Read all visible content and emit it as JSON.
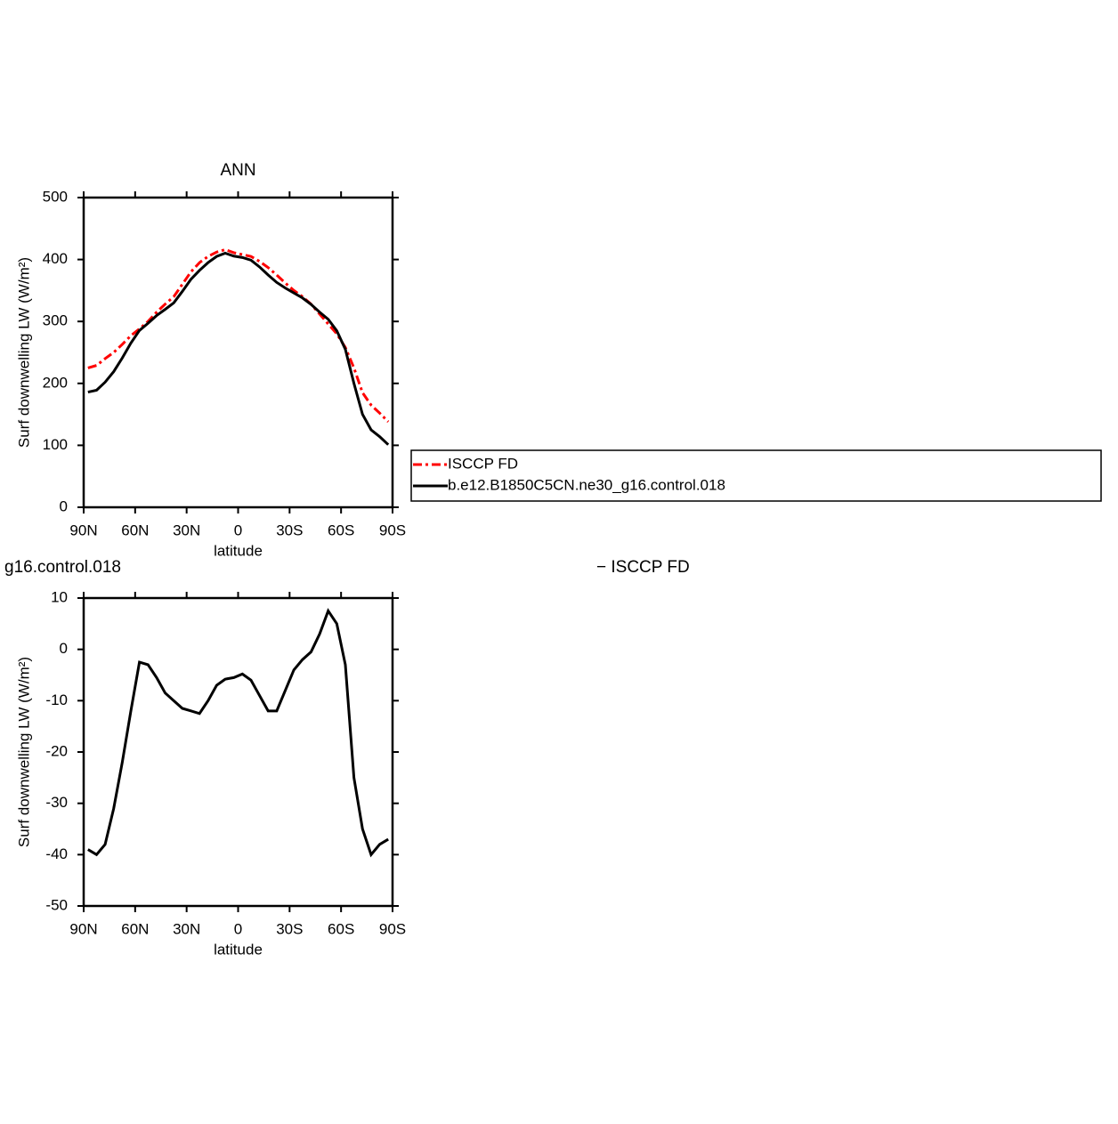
{
  "chart_data": [
    {
      "type": "line",
      "title": "ANN",
      "x_label": "latitude",
      "y_label": "Surf downwelling LW (W/m²)",
      "x": [
        87.5,
        82.5,
        77.5,
        72.5,
        67.5,
        62.5,
        57.5,
        52.5,
        47.5,
        42.5,
        37.5,
        32.5,
        27.5,
        22.5,
        17.5,
        12.5,
        7.5,
        2.5,
        -2.5,
        -7.5,
        -12.5,
        -17.5,
        -22.5,
        -27.5,
        -32.5,
        -37.5,
        -42.5,
        -47.5,
        -52.5,
        -57.5,
        -62.5,
        -67.5,
        -72.5,
        -77.5,
        -82.5,
        -87.5
      ],
      "series": [
        {
          "name": "ISCCP FD",
          "color": "#ff0000",
          "dash": true,
          "values": [
            225,
            229,
            240,
            250,
            263,
            277,
            288,
            300,
            315,
            328,
            340,
            360,
            380,
            395,
            405,
            412,
            416,
            411,
            408,
            405,
            397,
            387,
            375,
            362,
            350,
            340,
            328,
            312,
            296,
            280,
            258,
            225,
            185,
            165,
            152,
            138
          ]
        },
        {
          "name": "b.e12.B1850C5CN.ne30_g16.control.018",
          "color": "#000000",
          "dash": false,
          "values": [
            186,
            189,
            202,
            219,
            241,
            265,
            285.5,
            297,
            309.5,
            319.5,
            330,
            348.5,
            368,
            382.5,
            395,
            405,
            410.2,
            405.5,
            403.2,
            399,
            388,
            375,
            363,
            354,
            346,
            338,
            327.5,
            315,
            303.5,
            285,
            255,
            200,
            150,
            125,
            114,
            101
          ]
        }
      ],
      "xlim": [
        90,
        -90
      ],
      "xticks": [
        {
          "value": 90,
          "label": "90N"
        },
        {
          "value": 60,
          "label": "60N"
        },
        {
          "value": 30,
          "label": "30N"
        },
        0,
        {
          "value": -30,
          "label": "30S"
        },
        {
          "value": -60,
          "label": "60S"
        },
        {
          "value": -90,
          "label": "90S"
        }
      ],
      "ylim": [
        0,
        500
      ],
      "yticks": [
        0,
        100,
        200,
        300,
        400,
        500
      ],
      "legend": "right"
    },
    {
      "type": "line",
      "title_parts": [
        "g16.control.018",
        "− ISCCP FD"
      ],
      "x_label": "latitude",
      "y_label": "Surf downwelling LW (W/m²)",
      "x": [
        87.5,
        82.5,
        77.5,
        72.5,
        67.5,
        62.5,
        57.5,
        52.5,
        47.5,
        42.5,
        37.5,
        32.5,
        27.5,
        22.5,
        17.5,
        12.5,
        7.5,
        2.5,
        -2.5,
        -7.5,
        -12.5,
        -17.5,
        -22.5,
        -27.5,
        -32.5,
        -37.5,
        -42.5,
        -47.5,
        -52.5,
        -57.5,
        -62.5,
        -67.5,
        -72.5,
        -77.5,
        -82.5,
        -87.5
      ],
      "series": [
        {
          "color": "#000000",
          "dash": false,
          "values": [
            -39,
            -40,
            -38,
            -31,
            -22,
            -12,
            -2.5,
            -3,
            -5.5,
            -8.5,
            -10,
            -11.5,
            -12,
            -12.5,
            -10,
            -7,
            -5.8,
            -5.5,
            -4.8,
            -6,
            -9,
            -12,
            -12,
            -8,
            -4,
            -2,
            -0.5,
            3,
            7.5,
            5,
            -3,
            -25,
            -35,
            -40,
            -38,
            -37
          ]
        }
      ],
      "xlim": [
        90,
        -90
      ],
      "xticks": [
        {
          "value": 90,
          "label": "90N"
        },
        {
          "value": 60,
          "label": "60N"
        },
        {
          "value": 30,
          "label": "30N"
        },
        0,
        {
          "value": -30,
          "label": "30S"
        },
        {
          "value": -60,
          "label": "60S"
        },
        {
          "value": -90,
          "label": "90S"
        }
      ],
      "ylim": [
        -50,
        10
      ],
      "yticks": [
        -50,
        -40,
        -30,
        -20,
        -10,
        0,
        10
      ]
    }
  ]
}
